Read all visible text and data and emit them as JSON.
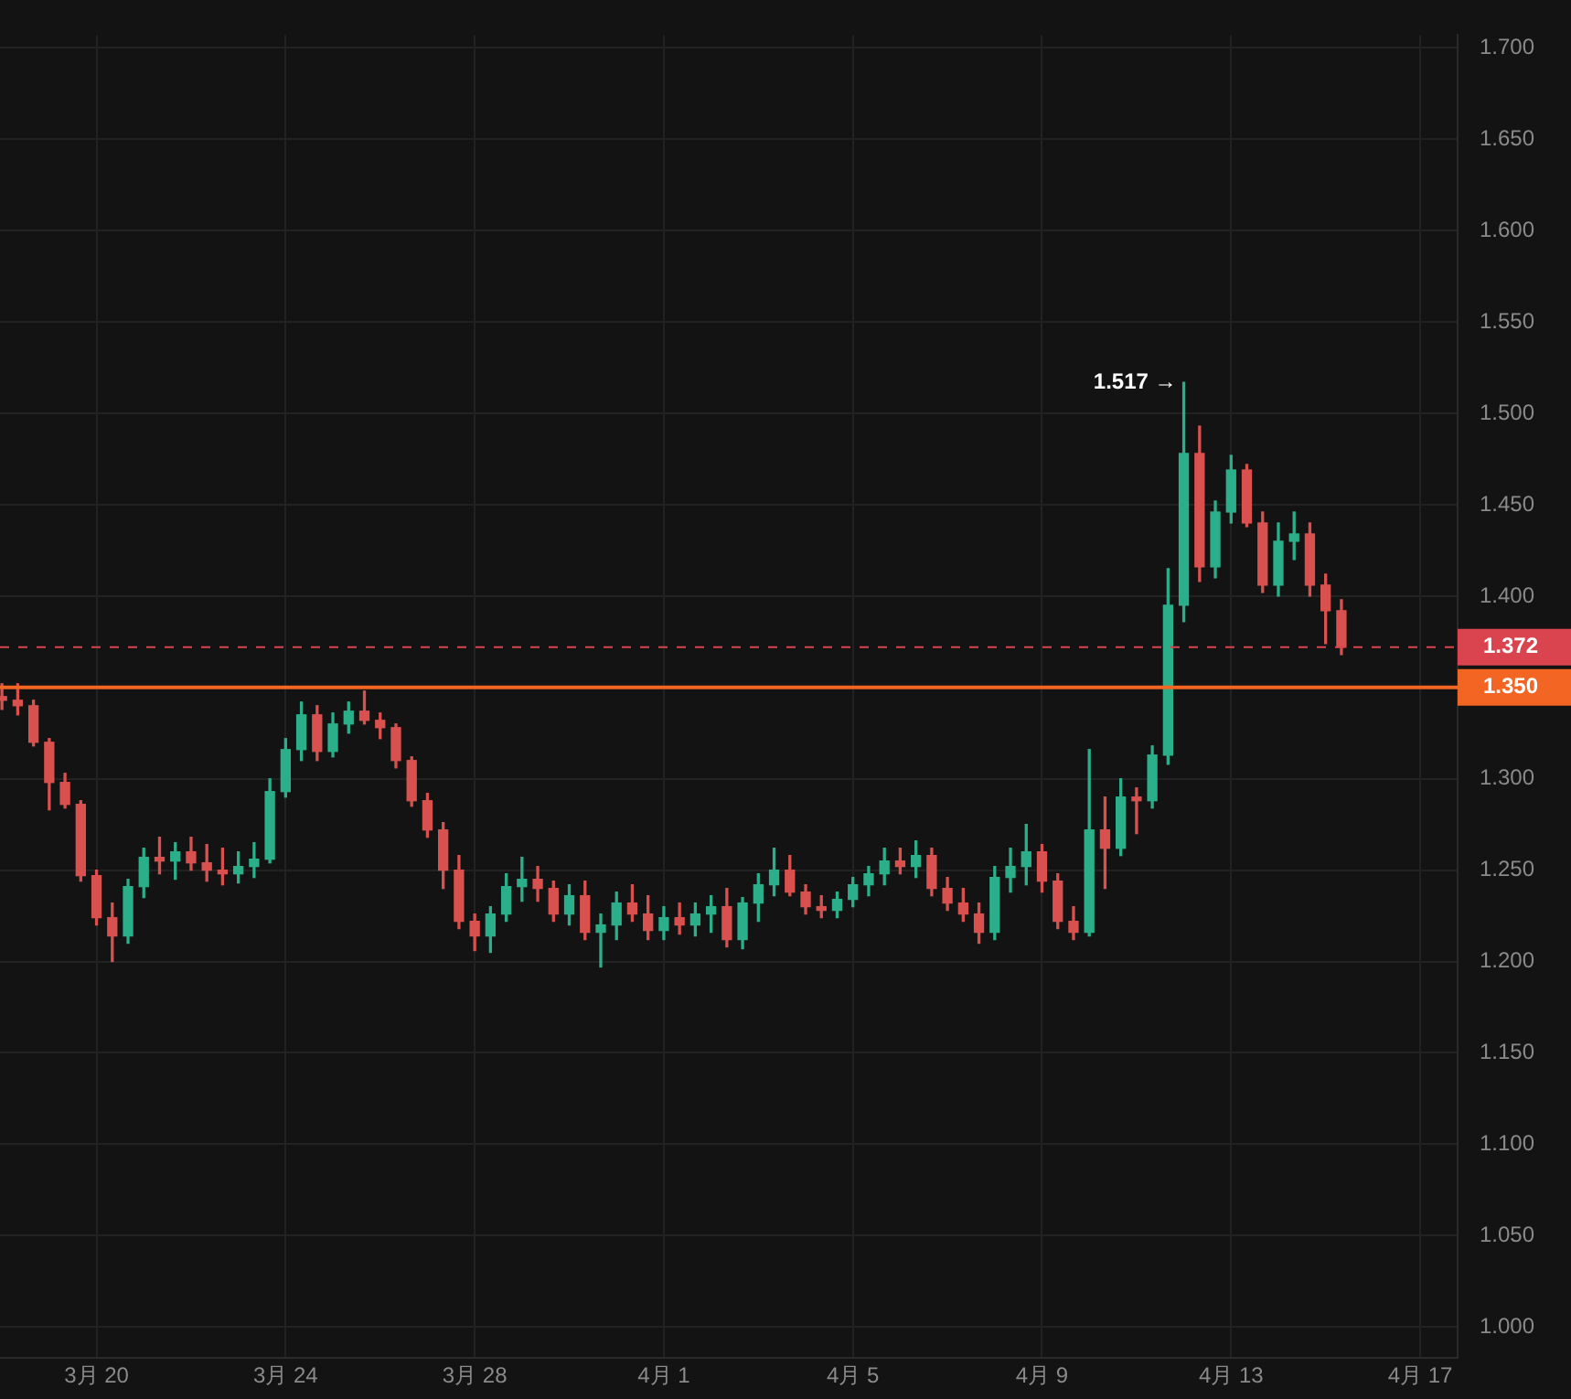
{
  "chart_data": {
    "type": "candlestick",
    "x": [
      "--03-18T00:00",
      "--03-18T08:00",
      "--03-18T16:00",
      "--03-19T00:00",
      "--03-19T08:00",
      "--03-19T16:00",
      "--03-20T00:00",
      "--03-20T08:00",
      "--03-20T16:00",
      "--03-21T00:00",
      "--03-21T08:00",
      "--03-21T16:00",
      "--03-22T00:00",
      "--03-22T08:00",
      "--03-22T16:00",
      "--03-23T00:00",
      "--03-23T08:00",
      "--03-23T16:00",
      "--03-24T00:00",
      "--03-24T08:00",
      "--03-24T16:00",
      "--03-25T00:00",
      "--03-25T08:00",
      "--03-25T16:00",
      "--03-26T00:00",
      "--03-26T08:00",
      "--03-26T16:00",
      "--03-27T00:00",
      "--03-27T08:00",
      "--03-27T16:00",
      "--03-28T00:00",
      "--03-28T08:00",
      "--03-28T16:00",
      "--03-29T00:00",
      "--03-29T08:00",
      "--03-29T16:00",
      "--03-30T00:00",
      "--03-30T08:00",
      "--03-30T16:00",
      "--03-31T00:00",
      "--03-31T08:00",
      "--03-31T16:00",
      "--04-01T00:00",
      "--04-01T08:00",
      "--04-01T16:00",
      "--04-02T00:00",
      "--04-02T08:00",
      "--04-02T16:00",
      "--04-03T00:00",
      "--04-03T08:00",
      "--04-03T16:00",
      "--04-04T00:00",
      "--04-04T08:00",
      "--04-04T16:00",
      "--04-05T00:00",
      "--04-05T08:00",
      "--04-05T16:00",
      "--04-06T00:00",
      "--04-06T08:00",
      "--04-06T16:00",
      "--04-07T00:00",
      "--04-07T08:00",
      "--04-07T16:00",
      "--04-08T00:00",
      "--04-08T08:00",
      "--04-08T16:00",
      "--04-09T00:00",
      "--04-09T08:00",
      "--04-09T16:00",
      "--04-10T00:00",
      "--04-10T08:00",
      "--04-10T16:00",
      "--04-11T00:00",
      "--04-11T08:00",
      "--04-11T16:00",
      "--04-12T00:00",
      "--04-12T08:00",
      "--04-12T16:00",
      "--04-13T00:00",
      "--04-13T08:00",
      "--04-13T16:00",
      "--04-14T00:00",
      "--04-14T08:00",
      "--04-14T16:00",
      "--04-15T00:00",
      "--04-15T08:00"
    ],
    "ohlc": [
      [
        1.345,
        1.352,
        1.338,
        1.343
      ],
      [
        1.343,
        1.352,
        1.335,
        1.34
      ],
      [
        1.34,
        1.343,
        1.318,
        1.32
      ],
      [
        1.32,
        1.322,
        1.283,
        1.298
      ],
      [
        1.298,
        1.303,
        1.284,
        1.286
      ],
      [
        1.286,
        1.288,
        1.244,
        1.247
      ],
      [
        1.247,
        1.25,
        1.22,
        1.224
      ],
      [
        1.224,
        1.232,
        1.2,
        1.214
      ],
      [
        1.214,
        1.245,
        1.21,
        1.241
      ],
      [
        1.241,
        1.262,
        1.235,
        1.257
      ],
      [
        1.257,
        1.268,
        1.248,
        1.255
      ],
      [
        1.255,
        1.265,
        1.245,
        1.26
      ],
      [
        1.26,
        1.268,
        1.25,
        1.254
      ],
      [
        1.254,
        1.264,
        1.244,
        1.25
      ],
      [
        1.25,
        1.262,
        1.242,
        1.248
      ],
      [
        1.248,
        1.26,
        1.243,
        1.252
      ],
      [
        1.252,
        1.265,
        1.246,
        1.256
      ],
      [
        1.256,
        1.3,
        1.254,
        1.293
      ],
      [
        1.293,
        1.322,
        1.29,
        1.316
      ],
      [
        1.316,
        1.342,
        1.31,
        1.335
      ],
      [
        1.335,
        1.34,
        1.31,
        1.315
      ],
      [
        1.315,
        1.336,
        1.312,
        1.33
      ],
      [
        1.33,
        1.342,
        1.325,
        1.337
      ],
      [
        1.337,
        1.348,
        1.33,
        1.332
      ],
      [
        1.332,
        1.336,
        1.322,
        1.328
      ],
      [
        1.328,
        1.33,
        1.306,
        1.31
      ],
      [
        1.31,
        1.312,
        1.285,
        1.288
      ],
      [
        1.288,
        1.292,
        1.268,
        1.272
      ],
      [
        1.272,
        1.276,
        1.24,
        1.25
      ],
      [
        1.25,
        1.258,
        1.218,
        1.222
      ],
      [
        1.222,
        1.226,
        1.206,
        1.214
      ],
      [
        1.214,
        1.23,
        1.205,
        1.226
      ],
      [
        1.226,
        1.248,
        1.222,
        1.241
      ],
      [
        1.241,
        1.257,
        1.233,
        1.245
      ],
      [
        1.245,
        1.252,
        1.233,
        1.24
      ],
      [
        1.24,
        1.244,
        1.222,
        1.226
      ],
      [
        1.226,
        1.242,
        1.22,
        1.236
      ],
      [
        1.236,
        1.244,
        1.212,
        1.216
      ],
      [
        1.216,
        1.226,
        1.197,
        1.22
      ],
      [
        1.22,
        1.238,
        1.212,
        1.232
      ],
      [
        1.232,
        1.242,
        1.222,
        1.226
      ],
      [
        1.226,
        1.236,
        1.212,
        1.217
      ],
      [
        1.217,
        1.23,
        1.212,
        1.224
      ],
      [
        1.224,
        1.232,
        1.215,
        1.22
      ],
      [
        1.22,
        1.232,
        1.214,
        1.226
      ],
      [
        1.226,
        1.236,
        1.216,
        1.23
      ],
      [
        1.23,
        1.24,
        1.208,
        1.212
      ],
      [
        1.212,
        1.235,
        1.207,
        1.232
      ],
      [
        1.232,
        1.248,
        1.222,
        1.242
      ],
      [
        1.242,
        1.262,
        1.236,
        1.25
      ],
      [
        1.25,
        1.258,
        1.236,
        1.238
      ],
      [
        1.238,
        1.242,
        1.226,
        1.23
      ],
      [
        1.23,
        1.236,
        1.224,
        1.228
      ],
      [
        1.228,
        1.238,
        1.224,
        1.234
      ],
      [
        1.234,
        1.246,
        1.23,
        1.242
      ],
      [
        1.242,
        1.252,
        1.236,
        1.248
      ],
      [
        1.248,
        1.262,
        1.242,
        1.255
      ],
      [
        1.255,
        1.262,
        1.248,
        1.252
      ],
      [
        1.252,
        1.266,
        1.246,
        1.258
      ],
      [
        1.258,
        1.262,
        1.236,
        1.24
      ],
      [
        1.24,
        1.246,
        1.228,
        1.232
      ],
      [
        1.232,
        1.24,
        1.222,
        1.226
      ],
      [
        1.226,
        1.232,
        1.21,
        1.216
      ],
      [
        1.216,
        1.252,
        1.212,
        1.246
      ],
      [
        1.246,
        1.262,
        1.238,
        1.252
      ],
      [
        1.252,
        1.275,
        1.242,
        1.26
      ],
      [
        1.26,
        1.264,
        1.238,
        1.244
      ],
      [
        1.244,
        1.248,
        1.218,
        1.222
      ],
      [
        1.222,
        1.23,
        1.212,
        1.216
      ],
      [
        1.216,
        1.316,
        1.214,
        1.272
      ],
      [
        1.272,
        1.29,
        1.24,
        1.262
      ],
      [
        1.262,
        1.3,
        1.258,
        1.29
      ],
      [
        1.29,
        1.295,
        1.27,
        1.288
      ],
      [
        1.288,
        1.318,
        1.284,
        1.313
      ],
      [
        1.313,
        1.415,
        1.308,
        1.395
      ],
      [
        1.395,
        1.517,
        1.386,
        1.478
      ],
      [
        1.478,
        1.493,
        1.408,
        1.416
      ],
      [
        1.416,
        1.452,
        1.41,
        1.446
      ],
      [
        1.446,
        1.477,
        1.44,
        1.469
      ],
      [
        1.469,
        1.472,
        1.438,
        1.44
      ],
      [
        1.44,
        1.446,
        1.402,
        1.406
      ],
      [
        1.406,
        1.44,
        1.4,
        1.43
      ],
      [
        1.43,
        1.446,
        1.42,
        1.434
      ],
      [
        1.434,
        1.44,
        1.4,
        1.406
      ],
      [
        1.406,
        1.412,
        1.374,
        1.392
      ],
      [
        1.392,
        1.398,
        1.368,
        1.372
      ]
    ],
    "colors": [
      "#d9514e",
      "#d9514e",
      "#d9514e",
      "#d9514e",
      "#d9514e",
      "#d9514e",
      "#d9514e",
      "#d9514e",
      "#2bae8a",
      "#2bae8a",
      "#d9514e",
      "#2bae8a",
      "#d9514e",
      "#d9514e",
      "#d9514e",
      "#2bae8a",
      "#2bae8a",
      "#2bae8a",
      "#2bae8a",
      "#2bae8a",
      "#d9514e",
      "#2bae8a",
      "#2bae8a",
      "#d9514e",
      "#d9514e",
      "#d9514e",
      "#d9514e",
      "#d9514e",
      "#d9514e",
      "#d9514e",
      "#d9514e",
      "#2bae8a",
      "#2bae8a",
      "#2bae8a",
      "#d9514e",
      "#d9514e",
      "#2bae8a",
      "#d9514e",
      "#2bae8a",
      "#2bae8a",
      "#d9514e",
      "#d9514e",
      "#2bae8a",
      "#d9514e",
      "#2bae8a",
      "#2bae8a",
      "#d9514e",
      "#2bae8a",
      "#2bae8a",
      "#2bae8a",
      "#d9514e",
      "#d9514e",
      "#d9514e",
      "#2bae8a",
      "#2bae8a",
      "#2bae8a",
      "#2bae8a",
      "#d9514e",
      "#2bae8a",
      "#d9514e",
      "#d9514e",
      "#d9514e",
      "#d9514e",
      "#2bae8a",
      "#2bae8a",
      "#2bae8a",
      "#d9514e",
      "#d9514e",
      "#d9514e",
      "#2bae8a",
      "#d9514e",
      "#2bae8a",
      "#d9514e",
      "#2bae8a",
      "#2bae8a",
      "#2bae8a",
      "#d9514e",
      "#2bae8a",
      "#2bae8a",
      "#d9514e",
      "#d9514e",
      "#2bae8a",
      "#2bae8a",
      "#d9514e",
      "#d9514e",
      "#d9514e"
    ],
    "xlim": [
      "--03-17T23:00",
      "--04-17T19:00"
    ],
    "xticks": [
      {
        "value": "--03-20",
        "label": "3月 20"
      },
      {
        "value": "--03-24",
        "label": "3月 24"
      },
      {
        "value": "--03-28",
        "label": "3月 28"
      },
      {
        "value": "--04-01",
        "label": "4月 1"
      },
      {
        "value": "--04-05",
        "label": "4月 5"
      },
      {
        "value": "--04-09",
        "label": "4月 9"
      },
      {
        "value": "--04-13",
        "label": "4月 13"
      },
      {
        "value": "--04-17",
        "label": "4月 17"
      }
    ],
    "ylim": [
      0.983,
      1.707
    ],
    "yticks": [
      {
        "value": 1.0,
        "label": "1.000"
      },
      {
        "value": 1.05,
        "label": "1.050"
      },
      {
        "value": 1.1,
        "label": "1.100"
      },
      {
        "value": 1.15,
        "label": "1.150"
      },
      {
        "value": 1.2,
        "label": "1.200"
      },
      {
        "value": 1.25,
        "label": "1.250"
      },
      {
        "value": 1.3,
        "label": "1.300"
      },
      {
        "value": 1.35,
        "label": null
      },
      {
        "value": 1.4,
        "label": "1.400"
      },
      {
        "value": 1.45,
        "label": "1.450"
      },
      {
        "value": 1.5,
        "label": "1.500"
      },
      {
        "value": 1.55,
        "label": "1.550"
      },
      {
        "value": 1.6,
        "label": "1.600"
      },
      {
        "value": 1.65,
        "label": "1.650"
      },
      {
        "value": 1.7,
        "label": "1.700"
      }
    ],
    "ref_lines": [
      {
        "axis": "y",
        "value": 1.372,
        "label": "1.372",
        "color": "#d9444e",
        "line_style": "dashed"
      },
      {
        "axis": "y",
        "value": 1.35,
        "label": "1.350",
        "color": "#f26522",
        "line_style": "solid"
      }
    ],
    "annotations": [
      {
        "text": "1.517 →",
        "x": "--04-12T00:00",
        "y": 1.517
      }
    ],
    "grid": true,
    "legend": false
  }
}
